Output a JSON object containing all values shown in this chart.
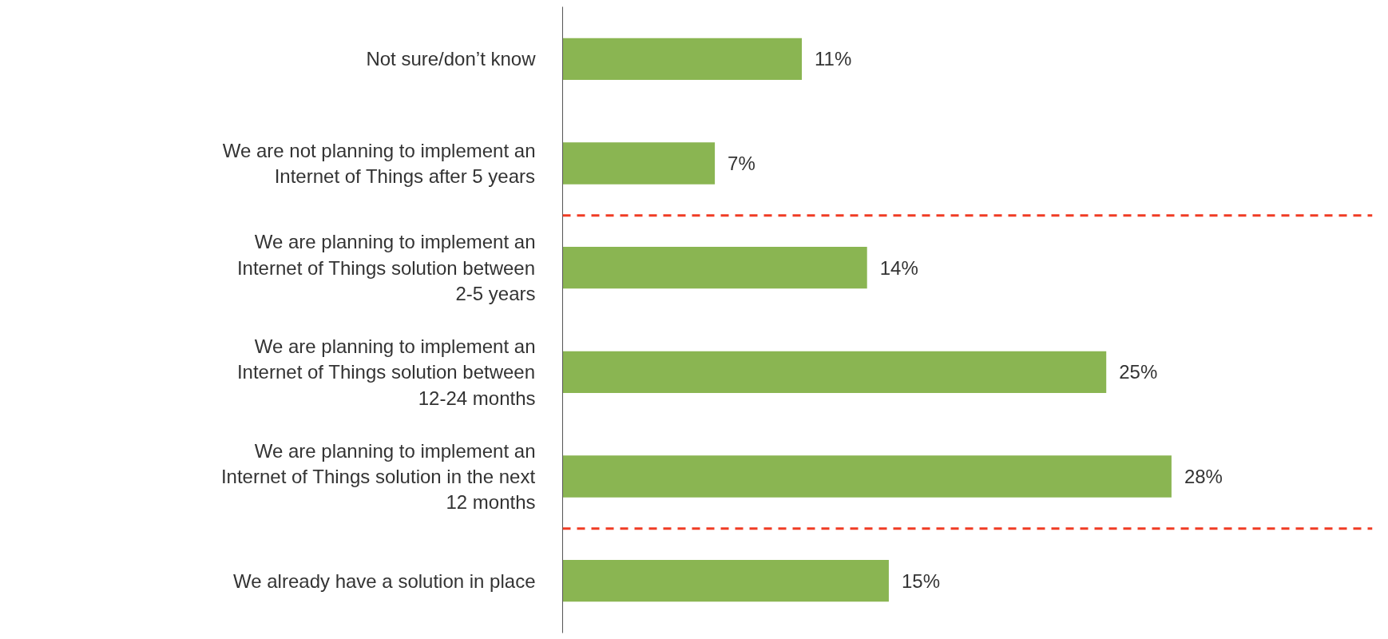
{
  "chart_data": {
    "type": "bar",
    "orientation": "horizontal",
    "categories": [
      "Not sure/don’t know",
      "We are not planning to implement an\nInternet of Things after 5 years",
      "We are planning to implement an\nInternet of Things solution between\n2-5 years",
      "We are planning to implement an\nInternet of Things solution between\n12-24 months",
      "We are planning to implement an\nInternet of Things solution in the next\n12 months",
      "We already have a solution in place"
    ],
    "values": [
      11,
      7,
      14,
      25,
      28,
      15
    ],
    "value_labels": [
      "11%",
      "7%",
      "14%",
      "25%",
      "28%",
      "15%"
    ],
    "color": "#8ab552",
    "grid": false
  }
}
